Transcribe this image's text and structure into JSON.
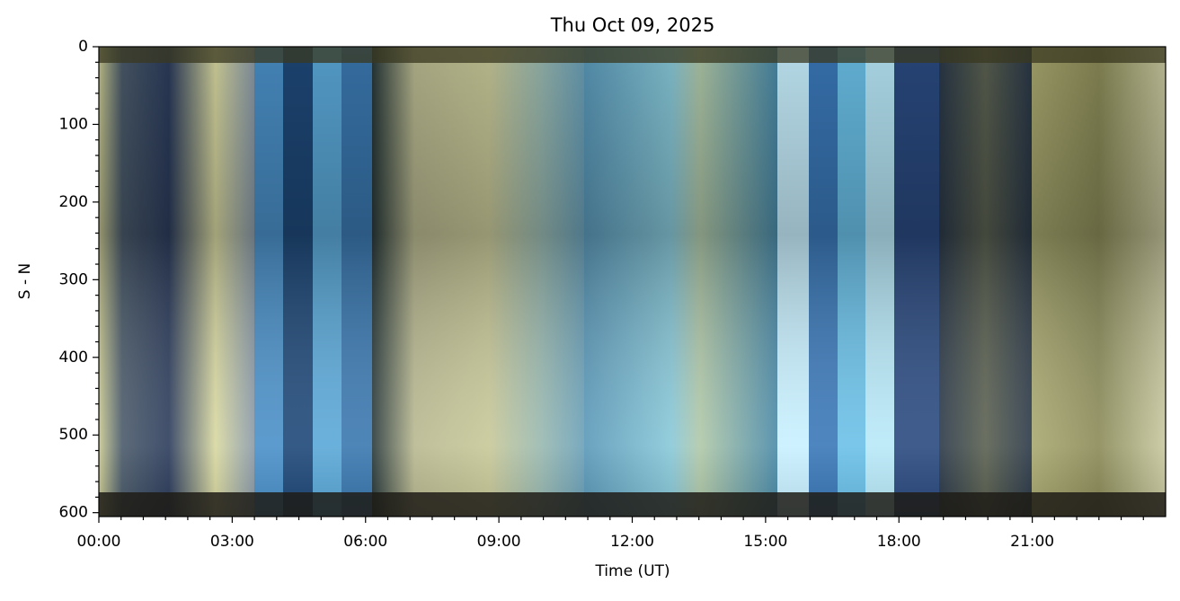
{
  "chart_data": {
    "type": "keogram",
    "title": "Thu Oct 09, 2025",
    "xlabel": "Time (UT)",
    "ylabel": "S - N",
    "xlim": [
      0,
      24
    ],
    "ylim": [
      605,
      0
    ],
    "xticks": [
      {
        "value": 0,
        "label": "00:00"
      },
      {
        "value": 3,
        "label": "03:00"
      },
      {
        "value": 6,
        "label": "06:00"
      },
      {
        "value": 9,
        "label": "09:00"
      },
      {
        "value": 12,
        "label": "12:00"
      },
      {
        "value": 15,
        "label": "15:00"
      },
      {
        "value": 18,
        "label": "18:00"
      },
      {
        "value": 21,
        "label": "21:00"
      }
    ],
    "xminorticks": [
      0.5,
      1,
      1.5,
      2,
      2.5,
      3.5,
      4,
      4.5,
      5,
      5.5,
      6.5,
      7,
      7.5,
      8,
      8.5,
      9.5,
      10,
      10.5,
      11,
      11.5,
      12.5,
      13,
      13.5,
      14,
      14.5,
      15.5,
      16,
      16.5,
      17,
      17.5,
      18.5,
      19,
      19.5,
      20,
      20.5,
      21.5,
      22,
      22.5,
      23,
      23.5
    ],
    "yticks": [
      0,
      100,
      200,
      300,
      400,
      500,
      600
    ],
    "yminorticks": [
      20,
      40,
      60,
      80,
      120,
      140,
      160,
      180,
      220,
      240,
      260,
      280,
      320,
      340,
      360,
      380,
      420,
      440,
      460,
      480,
      520,
      540,
      560,
      580
    ]
  }
}
